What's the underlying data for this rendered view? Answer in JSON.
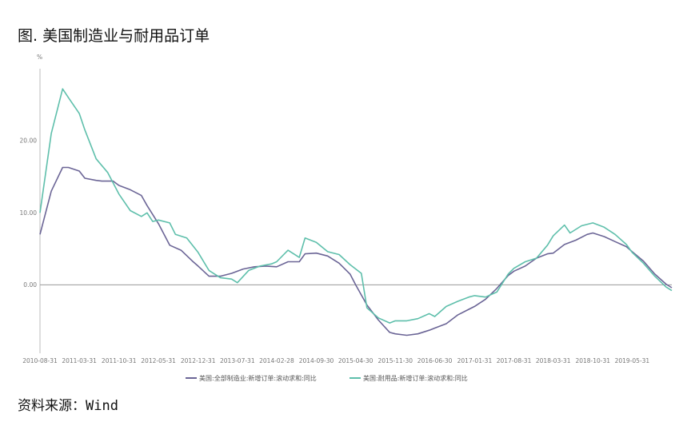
{
  "title": "图. 美国制造业与耐用品订单",
  "source": "资料来源：Wind",
  "chart_data": {
    "type": "line",
    "title": "图. 美国制造业与耐用品订单",
    "ylabel": "%",
    "xlabel": "",
    "ylim": [
      -9.5,
      30
    ],
    "grid": false,
    "legend": "bottom",
    "y_ticks": [
      "20.00",
      "10.00",
      "0.00"
    ],
    "y_tick_values": [
      20,
      10,
      0
    ],
    "x_ticks": [
      "2010-08-31",
      "2011-03-31",
      "2011-10-31",
      "2012-05-31",
      "2012-12-31",
      "2013-07-31",
      "2014-02-28",
      "2014-09-30",
      "2015-04-30",
      "2015-11-30",
      "2016-06-30",
      "2017-01-31",
      "2017-08-31",
      "2018-03-31",
      "2018-10-31",
      "2019-05-31"
    ],
    "x_range": [
      "2010-08-31",
      "2019-12-31"
    ],
    "series": [
      {
        "name": "美国:全部制造业:新增订单:滚动求和:同比",
        "color": "#6b6596",
        "points": [
          [
            "2010-08-31",
            7.0
          ],
          [
            "2010-10-31",
            13.0
          ],
          [
            "2010-12-31",
            16.3
          ],
          [
            "2011-01-31",
            16.3
          ],
          [
            "2011-03-31",
            15.8
          ],
          [
            "2011-04-30",
            14.8
          ],
          [
            "2011-06-30",
            14.5
          ],
          [
            "2011-07-31",
            14.4
          ],
          [
            "2011-09-30",
            14.4
          ],
          [
            "2011-10-31",
            13.8
          ],
          [
            "2011-12-31",
            13.2
          ],
          [
            "2012-02-29",
            12.4
          ],
          [
            "2012-03-31",
            11.0
          ],
          [
            "2012-05-31",
            8.5
          ],
          [
            "2012-07-31",
            5.5
          ],
          [
            "2012-09-30",
            4.8
          ],
          [
            "2012-11-30",
            3.3
          ],
          [
            "2012-12-31",
            2.6
          ],
          [
            "2013-02-28",
            1.2
          ],
          [
            "2013-04-30",
            1.2
          ],
          [
            "2013-06-30",
            1.6
          ],
          [
            "2013-08-31",
            2.2
          ],
          [
            "2013-10-31",
            2.5
          ],
          [
            "2013-12-31",
            2.6
          ],
          [
            "2014-02-28",
            2.5
          ],
          [
            "2014-04-30",
            3.2
          ],
          [
            "2014-06-30",
            3.2
          ],
          [
            "2014-07-31",
            4.3
          ],
          [
            "2014-09-30",
            4.4
          ],
          [
            "2014-11-30",
            4.0
          ],
          [
            "2015-01-31",
            3.0
          ],
          [
            "2015-03-31",
            1.5
          ],
          [
            "2015-04-30",
            0.0
          ],
          [
            "2015-06-30",
            -2.8
          ],
          [
            "2015-08-31",
            -4.9
          ],
          [
            "2015-10-31",
            -6.6
          ],
          [
            "2015-11-30",
            -6.8
          ],
          [
            "2016-01-31",
            -7.0
          ],
          [
            "2016-03-31",
            -6.8
          ],
          [
            "2016-05-31",
            -6.3
          ],
          [
            "2016-06-30",
            -6.0
          ],
          [
            "2016-08-31",
            -5.4
          ],
          [
            "2016-10-31",
            -4.2
          ],
          [
            "2016-12-31",
            -3.4
          ],
          [
            "2017-01-31",
            -3.0
          ],
          [
            "2017-03-31",
            -2.0
          ],
          [
            "2017-05-31",
            -0.5
          ],
          [
            "2017-07-31",
            1.3
          ],
          [
            "2017-08-31",
            1.9
          ],
          [
            "2017-10-31",
            2.6
          ],
          [
            "2017-12-31",
            3.7
          ],
          [
            "2018-02-28",
            4.3
          ],
          [
            "2018-03-31",
            4.4
          ],
          [
            "2018-05-31",
            5.6
          ],
          [
            "2018-07-31",
            6.2
          ],
          [
            "2018-09-30",
            7.0
          ],
          [
            "2018-10-31",
            7.2
          ],
          [
            "2018-12-31",
            6.7
          ],
          [
            "2019-02-28",
            6.0
          ],
          [
            "2019-04-30",
            5.3
          ],
          [
            "2019-05-31",
            4.6
          ],
          [
            "2019-07-31",
            3.3
          ],
          [
            "2019-09-30",
            1.5
          ],
          [
            "2019-11-30",
            0.1
          ],
          [
            "2019-12-31",
            -0.4
          ]
        ]
      },
      {
        "name": "美国:耐用品:新增订单:滚动求和:同比",
        "color": "#5ebfab",
        "points": [
          [
            "2010-08-31",
            10.0
          ],
          [
            "2010-10-31",
            21.0
          ],
          [
            "2010-12-31",
            27.2
          ],
          [
            "2011-01-31",
            26.0
          ],
          [
            "2011-03-31",
            23.8
          ],
          [
            "2011-04-30",
            21.5
          ],
          [
            "2011-06-30",
            17.5
          ],
          [
            "2011-08-31",
            15.6
          ],
          [
            "2011-10-31",
            12.6
          ],
          [
            "2011-12-31",
            10.3
          ],
          [
            "2012-02-29",
            9.5
          ],
          [
            "2012-03-31",
            10.0
          ],
          [
            "2012-04-30",
            8.8
          ],
          [
            "2012-05-31",
            9.0
          ],
          [
            "2012-07-31",
            8.6
          ],
          [
            "2012-08-31",
            7.0
          ],
          [
            "2012-10-31",
            6.5
          ],
          [
            "2012-12-31",
            4.5
          ],
          [
            "2013-02-28",
            2.0
          ],
          [
            "2013-04-30",
            1.0
          ],
          [
            "2013-06-30",
            0.8
          ],
          [
            "2013-07-31",
            0.3
          ],
          [
            "2013-09-30",
            2.0
          ],
          [
            "2013-11-30",
            2.6
          ],
          [
            "2014-01-31",
            2.9
          ],
          [
            "2014-02-28",
            3.2
          ],
          [
            "2014-04-30",
            4.8
          ],
          [
            "2014-06-30",
            3.8
          ],
          [
            "2014-07-31",
            6.5
          ],
          [
            "2014-09-30",
            5.9
          ],
          [
            "2014-11-30",
            4.6
          ],
          [
            "2015-01-31",
            4.2
          ],
          [
            "2015-03-31",
            2.8
          ],
          [
            "2015-05-31",
            1.6
          ],
          [
            "2015-06-30",
            -3.2
          ],
          [
            "2015-08-31",
            -4.6
          ],
          [
            "2015-10-31",
            -5.3
          ],
          [
            "2015-11-30",
            -5.0
          ],
          [
            "2016-01-31",
            -5.0
          ],
          [
            "2016-03-31",
            -4.7
          ],
          [
            "2016-05-31",
            -4.0
          ],
          [
            "2016-06-30",
            -4.4
          ],
          [
            "2016-08-31",
            -3.0
          ],
          [
            "2016-10-31",
            -2.3
          ],
          [
            "2016-12-31",
            -1.7
          ],
          [
            "2017-01-31",
            -1.5
          ],
          [
            "2017-03-31",
            -1.7
          ],
          [
            "2017-05-31",
            -1.0
          ],
          [
            "2017-07-31",
            1.5
          ],
          [
            "2017-08-31",
            2.3
          ],
          [
            "2017-10-31",
            3.2
          ],
          [
            "2017-12-31",
            3.7
          ],
          [
            "2018-02-28",
            5.5
          ],
          [
            "2018-03-31",
            6.8
          ],
          [
            "2018-05-31",
            8.3
          ],
          [
            "2018-06-30",
            7.2
          ],
          [
            "2018-08-31",
            8.2
          ],
          [
            "2018-10-31",
            8.6
          ],
          [
            "2018-12-31",
            8.0
          ],
          [
            "2019-02-28",
            7.0
          ],
          [
            "2019-04-30",
            5.6
          ],
          [
            "2019-05-31",
            4.5
          ],
          [
            "2019-07-31",
            3.0
          ],
          [
            "2019-09-30",
            1.2
          ],
          [
            "2019-11-30",
            -0.3
          ],
          [
            "2019-12-31",
            -0.8
          ]
        ]
      }
    ]
  }
}
